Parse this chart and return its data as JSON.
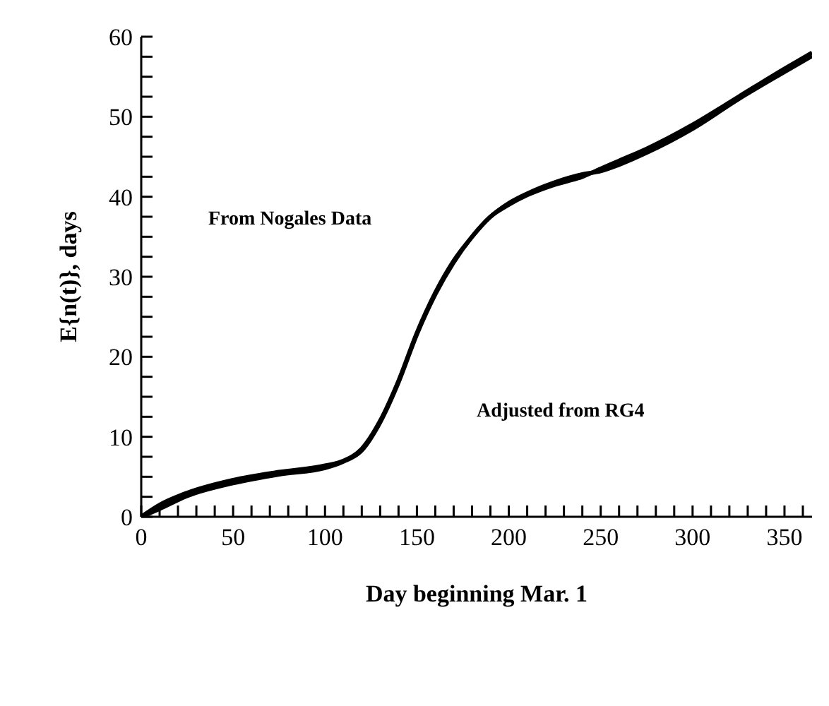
{
  "chart_data": {
    "type": "line",
    "xlabel": "Day beginning Mar. 1",
    "ylabel": "E{n(t)}, days",
    "annotations": [
      "From Nogales Data",
      "Adjusted from RG4"
    ],
    "series": [
      {
        "color": "#000000",
        "x": [
          0,
          10,
          25,
          50,
          75,
          100,
          110,
          120,
          130,
          140,
          150,
          160,
          170,
          180,
          190,
          200,
          210,
          225,
          240,
          250,
          260,
          275,
          300,
          325,
          350,
          365
        ],
        "values": [
          0,
          1.5,
          3,
          4.6,
          5.6,
          6.4,
          7,
          8.5,
          12,
          17,
          23,
          28,
          32,
          35,
          37.5,
          39,
          40.2,
          41.5,
          42.5,
          43.5,
          44.5,
          46,
          49,
          52.5,
          56,
          58
        ]
      },
      {
        "color": "#000000",
        "x": [
          0,
          10,
          25,
          50,
          75,
          100,
          110,
          120,
          130,
          140,
          150,
          160,
          170,
          180,
          190,
          200,
          210,
          225,
          240,
          250,
          260,
          275,
          300,
          325,
          350,
          365
        ],
        "values": [
          0,
          1,
          2.6,
          4.2,
          5.3,
          6.1,
          6.9,
          8.3,
          11.8,
          16.8,
          22.8,
          27.8,
          31.8,
          35,
          37.5,
          39.2,
          40.4,
          41.8,
          42.8,
          43.2,
          44,
          45.5,
          48.5,
          52.2,
          55.6,
          57.6
        ]
      }
    ],
    "xlim": [
      0,
      365
    ],
    "xticks": [
      0,
      {
        "value": 10,
        "label": null
      },
      {
        "value": 20,
        "label": null
      },
      {
        "value": 30,
        "label": null
      },
      {
        "value": 40,
        "label": null
      },
      50,
      {
        "value": 60,
        "label": null
      },
      {
        "value": 70,
        "label": null
      },
      {
        "value": 80,
        "label": null
      },
      {
        "value": 90,
        "label": null
      },
      100,
      {
        "value": 110,
        "label": null
      },
      {
        "value": 120,
        "label": null
      },
      {
        "value": 130,
        "label": null
      },
      {
        "value": 140,
        "label": null
      },
      150,
      {
        "value": 160,
        "label": null
      },
      {
        "value": 170,
        "label": null
      },
      {
        "value": 180,
        "label": null
      },
      {
        "value": 190,
        "label": null
      },
      200,
      {
        "value": 210,
        "label": null
      },
      {
        "value": 220,
        "label": null
      },
      {
        "value": 230,
        "label": null
      },
      {
        "value": 240,
        "label": null
      },
      250,
      {
        "value": 260,
        "label": null
      },
      {
        "value": 270,
        "label": null
      },
      {
        "value": 280,
        "label": null
      },
      {
        "value": 290,
        "label": null
      },
      300,
      {
        "value": 310,
        "label": null
      },
      {
        "value": 320,
        "label": null
      },
      {
        "value": 330,
        "label": null
      },
      {
        "value": 340,
        "label": null
      },
      350,
      {
        "value": 360,
        "label": null
      }
    ],
    "ylim": [
      0,
      60
    ],
    "yticks": [
      0,
      {
        "value": 2.5,
        "label": null
      },
      {
        "value": 5,
        "label": null
      },
      {
        "value": 7.5,
        "label": null
      },
      10,
      {
        "value": 12.5,
        "label": null
      },
      {
        "value": 15,
        "label": null
      },
      {
        "value": 17.5,
        "label": null
      },
      20,
      {
        "value": 22.5,
        "label": null
      },
      {
        "value": 25,
        "label": null
      },
      {
        "value": 27.5,
        "label": null
      },
      30,
      {
        "value": 32.5,
        "label": null
      },
      {
        "value": 35,
        "label": null
      },
      {
        "value": 37.5,
        "label": null
      },
      40,
      {
        "value": 42.5,
        "label": null
      },
      {
        "value": 45,
        "label": null
      },
      {
        "value": 47.5,
        "label": null
      },
      50,
      {
        "value": 52.5,
        "label": null
      },
      {
        "value": 55,
        "label": null
      },
      {
        "value": 57.5,
        "label": null
      },
      60
    ],
    "grid": false,
    "legend": false,
    "marker": "none",
    "line_style": "solid"
  }
}
